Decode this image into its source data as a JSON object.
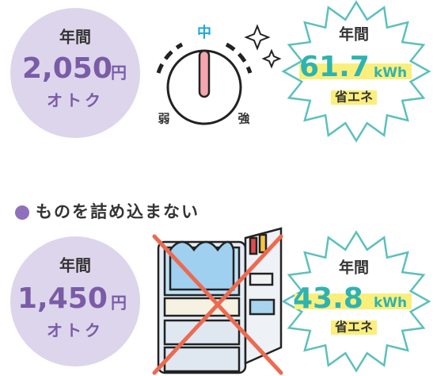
{
  "sections": [
    {
      "saving": {
        "label": "年間",
        "amount": "2,050",
        "unit": "円",
        "note": "オトク"
      },
      "dial": {
        "middle": "中",
        "low": "弱",
        "high": "強"
      },
      "energy": {
        "label": "年間",
        "amount": "61.7",
        "unit": "kWh",
        "note": "省エネ"
      }
    },
    {
      "heading": "ものを詰め込まない",
      "saving": {
        "label": "年間",
        "amount": "1,450",
        "unit": "円",
        "note": "オトク"
      },
      "energy": {
        "label": "年間",
        "amount": "43.8",
        "unit": "kWh",
        "note": "省エネ"
      }
    }
  ]
}
